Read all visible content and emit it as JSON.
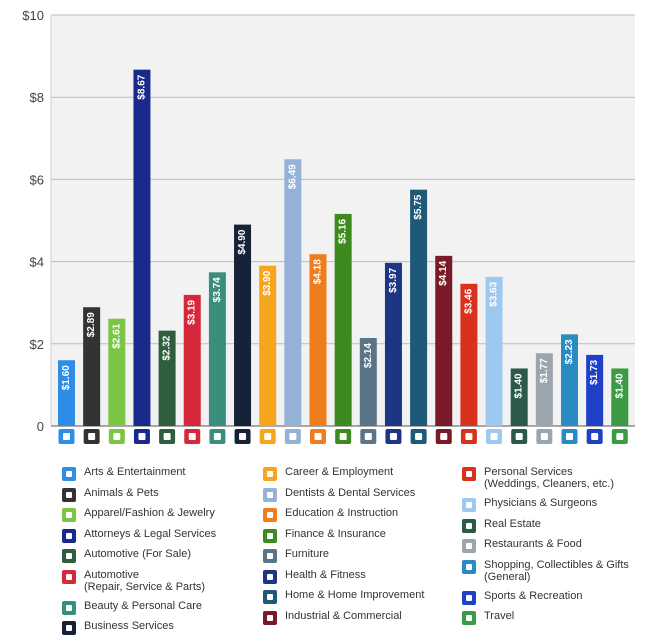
{
  "chart_data": {
    "type": "bar",
    "y_ticks": [
      "$10",
      "$8",
      "$6",
      "$4",
      "$2",
      "0"
    ],
    "ylim": [
      0,
      10
    ],
    "grid": true,
    "legend_placement": "bottom",
    "bars": [
      {
        "label": "Arts & Entertainment",
        "value": 1.6,
        "value_label": "$1.60",
        "color": "#2e8de6",
        "icon": "ticket-icon"
      },
      {
        "label": "Animals & Pets",
        "value": 2.89,
        "value_label": "$2.89",
        "color": "#333333",
        "icon": "paw-icon"
      },
      {
        "label": "Apparel/Fashion & Jewelry",
        "value": 2.61,
        "value_label": "$2.61",
        "color": "#7cc444",
        "icon": "shirt-icon"
      },
      {
        "label": "Attorneys & Legal Services",
        "value": 8.67,
        "value_label": "$8.67",
        "color": "#1a2a8c",
        "icon": "gavel-icon"
      },
      {
        "label": "Automotive (For Sale)",
        "value": 2.32,
        "value_label": "$2.32",
        "color": "#2f5e3c",
        "icon": "tag-icon"
      },
      {
        "label": "Automotive\n(Repair, Service & Parts)",
        "value": 3.19,
        "value_label": "$3.19",
        "color": "#d6283a",
        "icon": "car-icon"
      },
      {
        "label": "Beauty & Personal Care",
        "value": 3.74,
        "value_label": "$3.74",
        "color": "#3a8f7c",
        "icon": "brush-icon"
      },
      {
        "label": "Business Services",
        "value": 4.9,
        "value_label": "$4.90",
        "color": "#152238",
        "icon": "card-icon"
      },
      {
        "label": "Career & Employment",
        "value": 3.9,
        "value_label": "$3.90",
        "color": "#f7a51d",
        "icon": "briefcase-icon"
      },
      {
        "label": "Dentists & Dental Services",
        "value": 6.49,
        "value_label": "$6.49",
        "color": "#94b2d8",
        "icon": "tooth-icon"
      },
      {
        "label": "Education & Instruction",
        "value": 4.18,
        "value_label": "$4.18",
        "color": "#ef7d1e",
        "icon": "graduation-cap-icon"
      },
      {
        "label": "Finance & Insurance",
        "value": 5.16,
        "value_label": "$5.16",
        "color": "#3d8a1f",
        "icon": "piggy-bank-icon"
      },
      {
        "label": "Furniture",
        "value": 2.14,
        "value_label": "$2.14",
        "color": "#5a7488",
        "icon": "sofa-icon"
      },
      {
        "label": "Health & Fitness",
        "value": 3.97,
        "value_label": "$3.97",
        "color": "#1d3585",
        "icon": "apple-icon"
      },
      {
        "label": "Home & Home Improvement",
        "value": 5.75,
        "value_label": "$5.75",
        "color": "#1e5a78",
        "icon": "house-icon"
      },
      {
        "label": "Industrial & Commercial",
        "value": 4.14,
        "value_label": "$4.14",
        "color": "#7a1a28",
        "icon": "factory-icon"
      },
      {
        "label": "Personal Services\n(Weddings, Cleaners, etc.)",
        "value": 3.46,
        "value_label": "$3.46",
        "color": "#d8311d",
        "icon": "hand-icon"
      },
      {
        "label": "Physicians & Surgeons",
        "value": 3.63,
        "value_label": "$3.63",
        "color": "#9dc8f0",
        "icon": "medical-cross-icon"
      },
      {
        "label": "Real Estate",
        "value": 1.4,
        "value_label": "$1.40",
        "color": "#2c5a48",
        "icon": "building-icon"
      },
      {
        "label": "Restaurants & Food",
        "value": 1.77,
        "value_label": "$1.77",
        "color": "#9aa5ae",
        "icon": "fork-knife-icon"
      },
      {
        "label": "Shopping, Collectibles & Gifts\n(General)",
        "value": 2.23,
        "value_label": "$2.23",
        "color": "#2a8ac2",
        "icon": "gift-icon"
      },
      {
        "label": "Sports & Recreation",
        "value": 1.73,
        "value_label": "$1.73",
        "color": "#2040c8",
        "icon": "ball-icon"
      },
      {
        "label": "Travel",
        "value": 1.4,
        "value_label": "$1.40",
        "color": "#3c9b45",
        "icon": "plane-icon"
      }
    ]
  }
}
